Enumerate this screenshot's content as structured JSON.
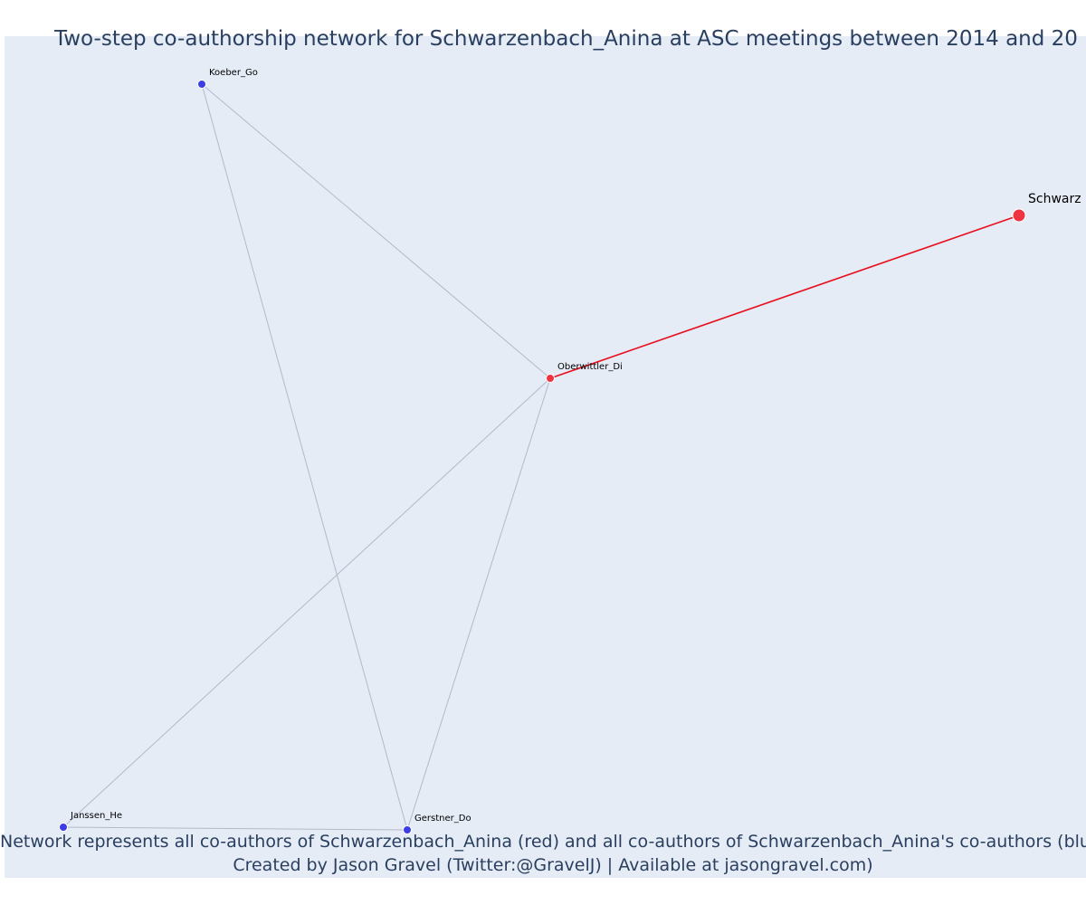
{
  "title": "Two-step co-authorship network for Schwarzenbach_Anina at ASC meetings between 2014 and 20",
  "caption": {
    "line1": "Network represents all co-authors of Schwarzenbach_Anina (red) and all co-authors of Schwarzenbach_Anina's co-authors (blue)",
    "line2": "Created by Jason Gravel (Twitter:@GravelJ) | Available at jasongravel.com)"
  },
  "colors": {
    "background": "#e5ecf6",
    "text": "#2a3f5f",
    "focal": "#ef3340",
    "coauthor": "#3d3de6",
    "edge_primary": "#e8101f",
    "edge_secondary": "#b4b8c8"
  },
  "nodes": [
    {
      "id": "Schwarz",
      "label": "Schwarz",
      "group": "focal"
    },
    {
      "id": "Oberwittler_Di",
      "label": "Oberwittler_Di",
      "group": "coauthor"
    },
    {
      "id": "Koeber_Go",
      "label": "Koeber_Go",
      "group": "second"
    },
    {
      "id": "Janssen_He",
      "label": "Janssen_He",
      "group": "second"
    },
    {
      "id": "Gerstner_Do",
      "label": "Gerstner_Do",
      "group": "second"
    }
  ],
  "edges": [
    {
      "source": "Schwarz",
      "target": "Oberwittler_Di",
      "type": "primary"
    },
    {
      "source": "Oberwittler_Di",
      "target": "Koeber_Go",
      "type": "secondary"
    },
    {
      "source": "Oberwittler_Di",
      "target": "Janssen_He",
      "type": "secondary"
    },
    {
      "source": "Oberwittler_Di",
      "target": "Gerstner_Do",
      "type": "secondary"
    },
    {
      "source": "Koeber_Go",
      "target": "Gerstner_Do",
      "type": "secondary"
    },
    {
      "source": "Janssen_He",
      "target": "Gerstner_Do",
      "type": "secondary"
    }
  ]
}
